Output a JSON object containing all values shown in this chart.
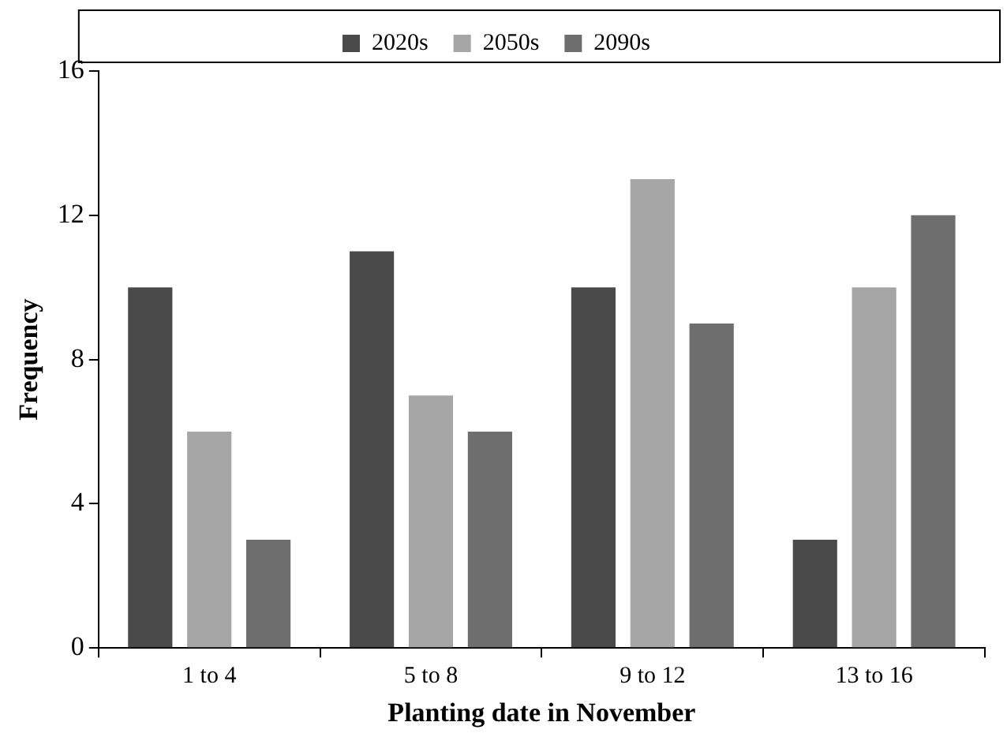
{
  "chart_data": {
    "type": "bar",
    "xlabel": "Planting date in November",
    "ylabel": "Frequency",
    "categories": [
      "1 to 4",
      "5 to 8",
      "9 to 12",
      "13 to 16"
    ],
    "series": [
      {
        "name": "2020s",
        "color": "#4a4a4a",
        "values": [
          10,
          11,
          10,
          3
        ]
      },
      {
        "name": "2050s",
        "color": "#a6a6a6",
        "values": [
          6,
          7,
          13,
          10
        ]
      },
      {
        "name": "2090s",
        "color": "#6e6e6e",
        "values": [
          3,
          6,
          9,
          12
        ]
      }
    ],
    "ylim": [
      0,
      16
    ],
    "yticks": [
      0,
      4,
      8,
      12,
      16
    ],
    "grid": false,
    "legend": "top"
  }
}
